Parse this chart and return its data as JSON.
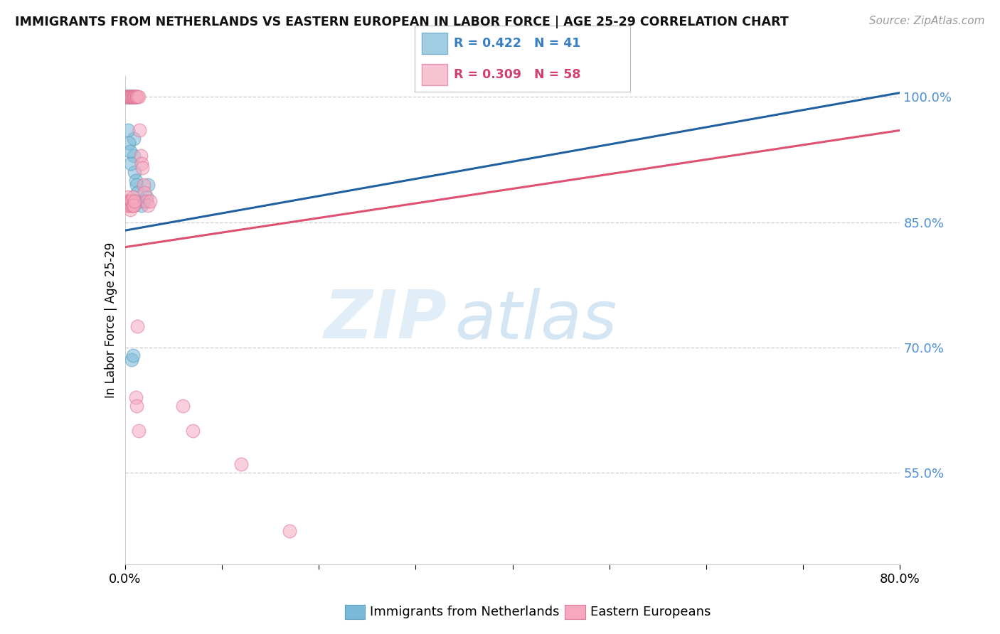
{
  "title": "IMMIGRANTS FROM NETHERLANDS VS EASTERN EUROPEAN IN LABOR FORCE | AGE 25-29 CORRELATION CHART",
  "source": "Source: ZipAtlas.com",
  "ylabel": "In Labor Force | Age 25-29",
  "xlim": [
    0.0,
    0.8
  ],
  "ylim": [
    0.44,
    1.025
  ],
  "ytick_positions": [
    0.55,
    0.7,
    0.85,
    1.0
  ],
  "ytick_labels": [
    "55.0%",
    "70.0%",
    "85.0%",
    "100.0%"
  ],
  "blue_color": "#7ab9d8",
  "blue_edge": "#5a9ec0",
  "pink_color": "#f5a8be",
  "pink_edge": "#e07898",
  "blue_line_color": "#2060a0",
  "pink_line_color": "#e05070",
  "grid_color": "#cccccc",
  "blue_R": "0.422",
  "blue_N": "41",
  "pink_R": "0.309",
  "pink_N": "58",
  "legend_label_blue": "Immigrants from Netherlands",
  "legend_label_pink": "Eastern Europeans",
  "watermark_zip": "ZIP",
  "watermark_atlas": "atlas",
  "blue_x": [
    0.001,
    0.001,
    0.002,
    0.002,
    0.002,
    0.003,
    0.003,
    0.003,
    0.004,
    0.004,
    0.004,
    0.005,
    0.005,
    0.005,
    0.006,
    0.006,
    0.006,
    0.007,
    0.007,
    0.007,
    0.008,
    0.008,
    0.009,
    0.009,
    0.01,
    0.011,
    0.012,
    0.013,
    0.015,
    0.017,
    0.019,
    0.022,
    0.024,
    0.003,
    0.004,
    0.005,
    0.006,
    0.007,
    0.008,
    0.009,
    0.01
  ],
  "blue_y": [
    1.0,
    1.0,
    1.0,
    1.0,
    1.0,
    1.0,
    1.0,
    1.0,
    1.0,
    1.0,
    1.0,
    1.0,
    1.0,
    1.0,
    1.0,
    1.0,
    1.0,
    1.0,
    1.0,
    1.0,
    1.0,
    1.0,
    0.93,
    0.95,
    0.91,
    0.9,
    0.895,
    0.885,
    0.875,
    0.87,
    0.875,
    0.88,
    0.895,
    0.96,
    0.945,
    0.935,
    0.92,
    0.685,
    0.69,
    0.87,
    0.875
  ],
  "pink_x": [
    0.002,
    0.003,
    0.003,
    0.004,
    0.004,
    0.005,
    0.005,
    0.006,
    0.006,
    0.007,
    0.007,
    0.008,
    0.008,
    0.009,
    0.009,
    0.01,
    0.01,
    0.011,
    0.011,
    0.012,
    0.012,
    0.013,
    0.014,
    0.015,
    0.016,
    0.017,
    0.018,
    0.019,
    0.02,
    0.022,
    0.024,
    0.026,
    0.001,
    0.001,
    0.002,
    0.002,
    0.003,
    0.003,
    0.004,
    0.004,
    0.005,
    0.005,
    0.006,
    0.006,
    0.007,
    0.007,
    0.008,
    0.008,
    0.009,
    0.01,
    0.011,
    0.012,
    0.013,
    0.014,
    0.06,
    0.07,
    0.12,
    0.17
  ],
  "pink_y": [
    1.0,
    1.0,
    1.0,
    1.0,
    1.0,
    1.0,
    1.0,
    1.0,
    1.0,
    1.0,
    1.0,
    1.0,
    1.0,
    1.0,
    1.0,
    1.0,
    1.0,
    1.0,
    1.0,
    1.0,
    1.0,
    1.0,
    1.0,
    0.96,
    0.93,
    0.92,
    0.915,
    0.895,
    0.885,
    0.875,
    0.87,
    0.875,
    0.87,
    0.875,
    0.87,
    0.875,
    0.87,
    0.88,
    0.875,
    0.87,
    0.865,
    0.875,
    0.87,
    0.875,
    0.87,
    0.875,
    0.87,
    0.88,
    0.87,
    0.875,
    0.64,
    0.63,
    0.725,
    0.6,
    0.63,
    0.6,
    0.56,
    0.48
  ],
  "blue_line_x": [
    0.0,
    0.8
  ],
  "blue_line_y": [
    0.84,
    1.005
  ],
  "pink_line_x": [
    0.0,
    0.8
  ],
  "pink_line_y": [
    0.82,
    0.96
  ]
}
